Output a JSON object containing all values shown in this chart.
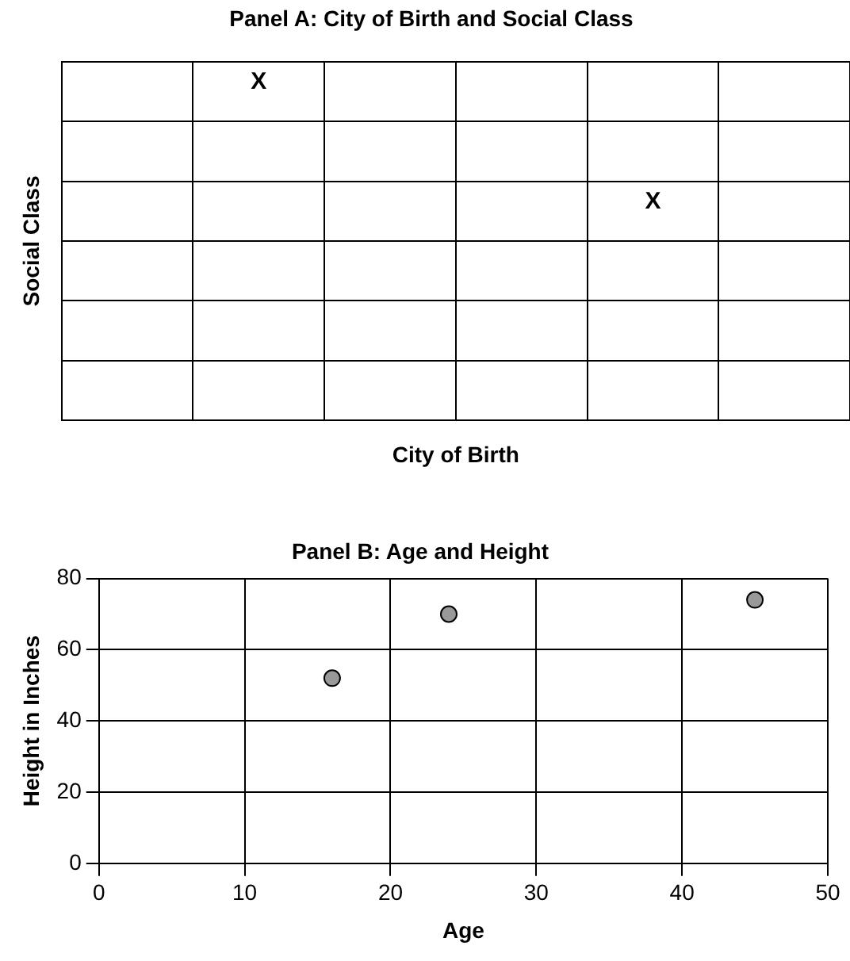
{
  "chart_data": [
    {
      "type": "other",
      "title": "Panel A: City of Birth and Social Class",
      "xlabel": "City of Birth",
      "ylabel": "Social Class",
      "annotations": [
        "X",
        "X"
      ]
    },
    {
      "type": "scatter",
      "title": "Panel B: Age and Height",
      "xlabel": "Age",
      "ylabel": "Height in Inches",
      "x": [
        16,
        24,
        45
      ],
      "values": [
        52,
        70,
        74
      ],
      "color": "#999999",
      "marker": "circle",
      "xlim": [
        0,
        50
      ],
      "ylim": [
        0,
        80
      ],
      "xticks": [
        0,
        10,
        20,
        30,
        40,
        50
      ],
      "yticks": [
        0,
        20,
        40,
        60,
        80
      ],
      "grid": true,
      "legend": false
    }
  ]
}
